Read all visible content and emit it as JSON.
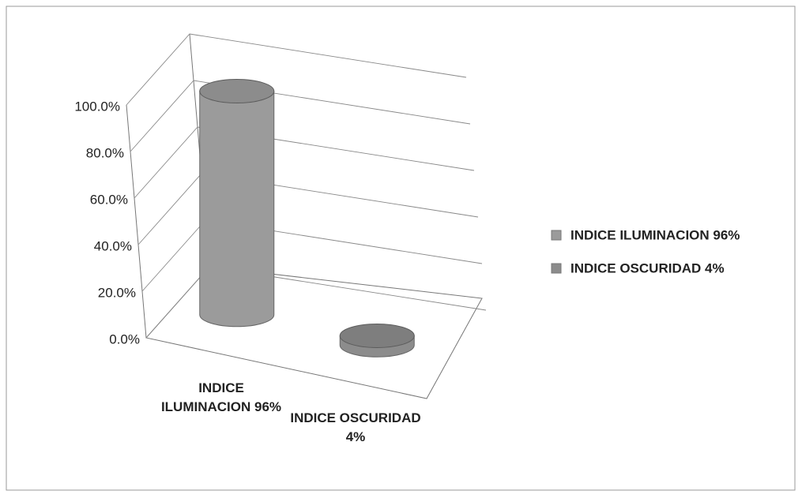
{
  "chart_data": {
    "type": "bar3d",
    "categories": [
      "INDICE ILUMINACION 96%",
      "INDICE OSCURIDAD 4%"
    ],
    "values": [
      96,
      4
    ],
    "colors": [
      "#9b9b9b",
      "#8c8c8c"
    ],
    "ylim": [
      0,
      100
    ],
    "yticks": [
      {
        "value": 0,
        "label": "0.0%"
      },
      {
        "value": 20,
        "label": "20.0%"
      },
      {
        "value": 40,
        "label": "40.0%"
      },
      {
        "value": 60,
        "label": "60.0%"
      },
      {
        "value": 80,
        "label": "80.0%"
      },
      {
        "value": 100,
        "label": "100.0%"
      }
    ],
    "grid": true,
    "legend": "right"
  }
}
